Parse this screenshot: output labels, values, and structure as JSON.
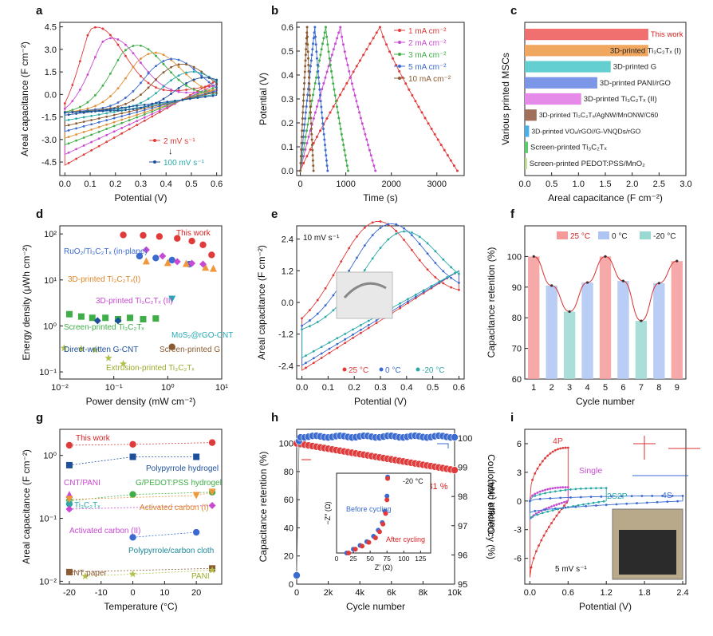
{
  "panels": [
    {
      "letter": "a",
      "type": "line",
      "xlabel": "Potential (V)",
      "ylabel": "Areal capacitance (F cm⁻²)",
      "xlim": [
        -0.02,
        0.62
      ],
      "ylim": [
        -5.4,
        4.8
      ],
      "xticks": [
        0.0,
        0.1,
        0.2,
        0.3,
        0.4,
        0.5,
        0.6
      ],
      "xtick_labels": [
        "0.0",
        "0.1",
        "0.2",
        "0.3",
        "0.4",
        "0.5",
        "0.6"
      ],
      "yticks": [
        -4.5,
        -3.0,
        -1.5,
        0.0,
        1.5,
        3.0,
        4.5
      ],
      "ytick_labels": [
        "-4.5",
        "-3.0",
        "-1.5",
        "0.0",
        "1.5",
        "3.0",
        "4.5"
      ],
      "legend": [
        "2 mV s⁻¹",
        "100 mV s⁻¹"
      ],
      "legend_arrow": "↓",
      "series": [
        {
          "peak": 4.1,
          "xp": 0.12,
          "neg": -4.9,
          "color": "#e03a3a"
        },
        {
          "peak": 3.3,
          "xp": 0.18,
          "neg": -4.1,
          "color": "#c84ad2"
        },
        {
          "peak": 2.7,
          "xp": 0.28,
          "neg": -3.4,
          "color": "#3fae48"
        },
        {
          "peak": 2.2,
          "xp": 0.35,
          "neg": -2.9,
          "color": "#e0913a"
        },
        {
          "peak": 1.8,
          "xp": 0.42,
          "neg": -2.4,
          "color": "#3b6ad0"
        },
        {
          "peak": 1.5,
          "xp": 0.46,
          "neg": -2.0,
          "color": "#8a5a30"
        },
        {
          "peak": 1.1,
          "xp": 0.5,
          "neg": -1.6,
          "color": "#2aa9a8"
        },
        {
          "peak": 0.8,
          "xp": 0.55,
          "neg": -1.2,
          "color": "#1d4f9a"
        }
      ]
    },
    {
      "letter": "b",
      "type": "line",
      "xlabel": "Time (s)",
      "ylabel": "Potential (V)",
      "xlim": [
        -80,
        3600
      ],
      "ylim": [
        -0.02,
        0.62
      ],
      "xticks": [
        0,
        1000,
        2000,
        3000
      ],
      "xtick_labels": [
        "0",
        "1000",
        "2000",
        "3000"
      ],
      "yticks": [
        0.0,
        0.1,
        0.2,
        0.3,
        0.4,
        0.5,
        0.6
      ],
      "ytick_labels": [
        "0.0",
        "0.1",
        "0.2",
        "0.3",
        "0.4",
        "0.5",
        "0.6"
      ],
      "series": [
        {
          "name": "1 mA cm⁻²",
          "charge": 1750,
          "end": 3450,
          "color": "#e03a3a"
        },
        {
          "name": "2 mA cm⁻²",
          "charge": 880,
          "end": 1650,
          "color": "#c84ad2"
        },
        {
          "name": "3 mA cm⁻²",
          "charge": 560,
          "end": 1050,
          "color": "#3fae48"
        },
        {
          "name": "5 mA cm⁻²",
          "charge": 320,
          "end": 600,
          "color": "#3b6ad0"
        },
        {
          "name": "10 mA cm⁻²",
          "charge": 150,
          "end": 290,
          "color": "#8a5a30"
        }
      ]
    },
    {
      "letter": "c",
      "type": "bar",
      "xlabel": "Areal capacitance (F cm⁻²)",
      "ylabel": "Various printed MSCs",
      "xlim": [
        0,
        3.0
      ],
      "xticks": [
        0,
        0.5,
        1.0,
        1.5,
        2.0,
        2.5,
        3.0
      ],
      "xtick_labels": [
        "0.0",
        "0.5",
        "1.0",
        "1.5",
        "2.0",
        "2.5",
        "3.0"
      ],
      "categories": [
        "This work",
        "3D-printed Ti₃C₂Tₓ (I)",
        "3D-printed G",
        "3D-printed PANI/rGO",
        "3D-printed Ti₃C₂Tₓ (II)",
        "3D-printed Ti₃C₂Tₓ/AgNW/MnONW/C60",
        "3D-printed VOₓ/rGO//G-VNQDs/rGO",
        "Screen-printed Ti₃C₂Tₓ",
        "Screen-printed PEDOT:PSS/MnO₂"
      ],
      "values": [
        2.3,
        2.3,
        1.6,
        1.35,
        1.05,
        0.22,
        0.08,
        0.06,
        0.04
      ],
      "colors": [
        "#f07070",
        "#f0a860",
        "#63cfd0",
        "#7b96e6",
        "#e58ae8",
        "#a0705a",
        "#4bb0e8",
        "#5ccb6a",
        "#b9d98a"
      ]
    },
    {
      "letter": "d",
      "type": "scatter",
      "xlabel": "Power density (mW cm⁻²)",
      "ylabel": "Energy density (μWh cm⁻²)",
      "xlog": true,
      "ylog": true,
      "xlim": [
        0.01,
        10
      ],
      "ylim": [
        0.07,
        150
      ],
      "xticks": [
        0.01,
        0.1,
        1,
        10
      ],
      "xtick_labels": [
        "10⁻²",
        "10⁻¹",
        "10⁰",
        "10¹"
      ],
      "yticks": [
        0.1,
        1,
        10,
        100
      ],
      "ytick_labels": [
        "10⁻¹",
        "10⁰",
        "10¹",
        "10²"
      ],
      "labels": [
        "This work",
        "RuO₂/Ti₃C₂Tₓ (in-plane)",
        "3D-printed Ti₃C₂Tₓ(I)",
        "3D-printed Ti₃C₂Tₓ (II)",
        "Screen-printed Ti₃C₂Tₓ",
        "MoS₂@rGO-CNT",
        "Direct-written G-CNT",
        "Screen-printed G",
        "Extrusion-printed Ti₃C₂Tₓ"
      ],
      "series": [
        {
          "marker": "circle",
          "color": "#e03a3a",
          "x": [
            0.15,
            0.35,
            0.7,
            1.5,
            2.8,
            4.5,
            6.5
          ],
          "y": [
            95,
            93,
            88,
            80,
            70,
            58,
            35
          ]
        },
        {
          "marker": "circle",
          "color": "#3b6ad0",
          "x": [
            0.3,
            0.6,
            1.2,
            2.5
          ],
          "y": [
            33,
            30,
            27,
            22
          ]
        },
        {
          "marker": "triangle",
          "color": "#f0973b",
          "x": [
            0.4,
            1.0,
            2.2,
            5,
            7
          ],
          "y": [
            26,
            24,
            23,
            19,
            18
          ]
        },
        {
          "marker": "diamond",
          "color": "#c84ad2",
          "x": [
            0.4,
            0.8,
            1.5,
            2.8,
            4.5
          ],
          "y": [
            45,
            33,
            25,
            23,
            22
          ]
        },
        {
          "marker": "square",
          "color": "#3fae48",
          "x": [
            0.015,
            0.025,
            0.04,
            0.07,
            0.12,
            0.2,
            0.35,
            0.6
          ],
          "y": [
            1.8,
            1.6,
            1.5,
            1.5,
            1.4,
            1.5,
            1.4,
            1.45
          ]
        },
        {
          "marker": "triangle-down",
          "color": "#27a8b5",
          "x": [
            1.2
          ],
          "y": [
            3.8
          ]
        },
        {
          "marker": "diamond",
          "color": "#1d4f9a",
          "x": [
            0.05,
            0.12
          ],
          "y": [
            1.3,
            1.3
          ]
        },
        {
          "marker": "circle",
          "color": "#8a5a30",
          "x": [
            1.2
          ],
          "y": [
            0.35
          ]
        },
        {
          "marker": "star",
          "color": "#b0c04a",
          "x": [
            0.012,
            0.025,
            0.045,
            0.08,
            0.15
          ],
          "y": [
            0.33,
            0.32,
            0.3,
            0.2,
            0.15
          ]
        }
      ]
    },
    {
      "letter": "e",
      "type": "line",
      "xlabel": "Potential (V)",
      "ylabel": "Areal capacitance (F cm⁻²)",
      "xlim": [
        -0.02,
        0.62
      ],
      "ylim": [
        -2.9,
        2.9
      ],
      "xticks": [
        0.0,
        0.1,
        0.2,
        0.3,
        0.4,
        0.5,
        0.6
      ],
      "xtick_labels": [
        "0.0",
        "0.1",
        "0.2",
        "0.3",
        "0.4",
        "0.5",
        "0.6"
      ],
      "yticks": [
        -2.4,
        -1.2,
        0.0,
        1.2,
        2.4
      ],
      "ytick_labels": [
        "-2.4",
        "-1.2",
        "0.0",
        "1.2",
        "2.4"
      ],
      "annotation": "10 mV s⁻¹",
      "series": [
        {
          "name": "25 °C",
          "peak": 2.45,
          "xp": 0.28,
          "neg": -2.6,
          "color": "#e03a3a"
        },
        {
          "name": "0 °C",
          "peak": 2.25,
          "xp": 0.33,
          "neg": -2.4,
          "color": "#3b6ad0"
        },
        {
          "name": "-20 °C",
          "peak": 1.85,
          "xp": 0.38,
          "neg": -2.1,
          "color": "#2aa9a8"
        }
      ]
    },
    {
      "letter": "f",
      "type": "bar",
      "xlabel": "Cycle number",
      "ylabel": "Capacitance retention (%)",
      "ylim": [
        60,
        110
      ],
      "yticks": [
        60,
        70,
        80,
        90,
        100
      ],
      "ytick_labels": [
        "60",
        "70",
        "80",
        "90",
        "100"
      ],
      "categories": [
        "1",
        "2",
        "3",
        "4",
        "5",
        "6",
        "7",
        "8",
        "9"
      ],
      "values": [
        100,
        90.5,
        82,
        91.5,
        100,
        92,
        79,
        91.3,
        98.5
      ],
      "series_names": [
        "25 °C",
        "0 °C",
        "-20 °C"
      ],
      "colors": [
        "#f59a9a",
        "#aec4f2",
        "#9ad8d2"
      ]
    },
    {
      "letter": "g",
      "type": "scatter",
      "xlabel": "Temperature (°C)",
      "ylabel": "Areal capacitance (F cm⁻²)",
      "ylog": true,
      "xlim": [
        -23,
        28
      ],
      "ylim": [
        0.009,
        2.6
      ],
      "xticks": [
        -20,
        -10,
        0,
        10,
        20
      ],
      "xtick_labels": [
        "-20",
        "-10",
        "0",
        "10",
        "20"
      ],
      "yticks": [
        0.01,
        0.1,
        1
      ],
      "ytick_labels": [
        "10⁻²",
        "10⁻¹",
        "10⁰"
      ],
      "labels": [
        "This work",
        "Polypyrrole hydrogel",
        "CNT/PANI",
        "G/PEDOT:PSS hydrogel",
        "Ti₃C₂Tₓ",
        "Activated carbon (I)",
        "Activated carbon (II)",
        "Polypyrrole/carbon cloth",
        "CNT paper",
        "PANI"
      ],
      "series": [
        {
          "marker": "circle",
          "color": "#e03a3a",
          "x": [
            -20,
            0,
            25
          ],
          "y": [
            1.45,
            1.5,
            1.6
          ]
        },
        {
          "marker": "square",
          "color": "#1d4f9a",
          "x": [
            -20,
            0,
            20
          ],
          "y": [
            0.7,
            0.95,
            0.95
          ]
        },
        {
          "marker": "triangle",
          "color": "#c84ad2",
          "x": [
            -20
          ],
          "y": [
            0.24
          ]
        },
        {
          "marker": "circle",
          "color": "#3fae48",
          "x": [
            -20,
            0,
            25
          ],
          "y": [
            0.19,
            0.24,
            0.26
          ]
        },
        {
          "marker": "circle",
          "color": "#2aa9a8",
          "x": [
            -20
          ],
          "y": [
            0.17
          ]
        },
        {
          "marker": "triangle-down",
          "color": "#f0973b",
          "x": [
            -20,
            20,
            25
          ],
          "y": [
            0.2,
            0.23,
            0.26
          ]
        },
        {
          "marker": "diamond",
          "color": "#c84ad2",
          "x": [
            -20,
            25
          ],
          "y": [
            0.14,
            0.16
          ]
        },
        {
          "marker": "circle",
          "color": "#3b6ad0",
          "x": [
            0,
            20
          ],
          "y": [
            0.05,
            0.06
          ]
        },
        {
          "marker": "square",
          "color": "#8a5a30",
          "x": [
            -20,
            25
          ],
          "y": [
            0.014,
            0.016
          ]
        },
        {
          "marker": "star",
          "color": "#b0c04a",
          "x": [
            -15,
            0,
            25
          ],
          "y": [
            0.012,
            0.013,
            0.015
          ]
        }
      ]
    },
    {
      "letter": "h",
      "type": "line",
      "xlabel": "Cycle number",
      "ylabel": "Capacitance retention (%)",
      "ylabel2": "Coulombic efficiency (%)",
      "xlim": [
        0,
        10000
      ],
      "ylim": [
        0,
        110
      ],
      "y2lim": [
        95,
        100.3
      ],
      "xticks": [
        0,
        2000,
        4000,
        6000,
        8000,
        10000
      ],
      "xtick_labels": [
        "0",
        "2k",
        "4k",
        "6k",
        "8k",
        "10k"
      ],
      "yticks": [
        0,
        20,
        40,
        60,
        80,
        100
      ],
      "ytick_labels": [
        "0",
        "20",
        "40",
        "60",
        "80",
        "100"
      ],
      "y2ticks": [
        95,
        96,
        97,
        98,
        99,
        100
      ],
      "y2tick_labels": [
        "95",
        "96",
        "97",
        "98",
        "99",
        "100"
      ],
      "annotation": "~81 %",
      "series": [
        {
          "color": "#e03a3a",
          "x": [
            0,
            1000,
            2000,
            3000,
            4000,
            5000,
            6000,
            7000,
            8000,
            9000,
            10000
          ],
          "y": [
            100,
            98,
            96,
            94,
            92,
            90,
            88,
            86,
            84,
            82,
            81
          ]
        },
        {
          "color": "#3b6ad0",
          "x": [
            0,
            300,
            1000,
            2000,
            4000,
            6000,
            8000,
            10000
          ],
          "y": [
            95.3,
            99.8,
            100,
            100,
            100,
            100,
            100,
            99.9
          ]
        }
      ],
      "inset": {
        "title": "-20 °C",
        "xlabel": "Z′ (Ω)",
        "ylabel": "−Z″ (Ω)",
        "xlim": [
          0,
          140
        ],
        "ylim": [
          0,
          105
        ],
        "xticks": [
          0,
          25,
          50,
          75,
          100,
          125
        ],
        "xtick_labels": [
          "0",
          "25",
          "50",
          "75",
          "100",
          "125"
        ],
        "legend": [
          "Before cycling",
          "After cycling"
        ],
        "before": {
          "x": [
            15,
            25,
            35,
            45,
            55,
            62,
            68,
            72,
            75,
            76
          ],
          "y": [
            0,
            5,
            10,
            15,
            22,
            30,
            40,
            55,
            75,
            100
          ]
        },
        "after": {
          "x": [
            18,
            28,
            38,
            48,
            58,
            64,
            69,
            73,
            75,
            76
          ],
          "y": [
            0,
            5,
            9,
            14,
            20,
            28,
            38,
            52,
            70,
            98
          ]
        }
      }
    },
    {
      "letter": "i",
      "type": "line",
      "xlabel": "Potential (V)",
      "ylabel": "Current (mA)",
      "xlim": [
        -0.08,
        2.45
      ],
      "ylim": [
        -8.7,
        7.5
      ],
      "xticks": [
        0,
        0.6,
        1.2,
        1.8,
        2.4
      ],
      "xtick_labels": [
        "0.0",
        "0.6",
        "1.2",
        "1.8",
        "2.4"
      ],
      "yticks": [
        -6,
        -3,
        0,
        3,
        6
      ],
      "ytick_labels": [
        "-6",
        "-3",
        "0",
        "3",
        "6"
      ],
      "annotation": "5 mV s⁻¹",
      "series": [
        {
          "name": "4P",
          "xmax": 0.6,
          "top": 6.2,
          "bot": -8.0,
          "color": "#e03a3a"
        },
        {
          "name": "Single",
          "xmax": 0.6,
          "top": 1.6,
          "bot": -2.0,
          "color": "#c84ad2"
        },
        {
          "name": "2S2P",
          "xmax": 1.2,
          "top": 1.5,
          "bot": -1.9,
          "color": "#2aa9a8"
        },
        {
          "name": "4S",
          "xmax": 2.4,
          "top": 0.6,
          "bot": -1.2,
          "color": "#3b6ad0"
        }
      ]
    }
  ]
}
